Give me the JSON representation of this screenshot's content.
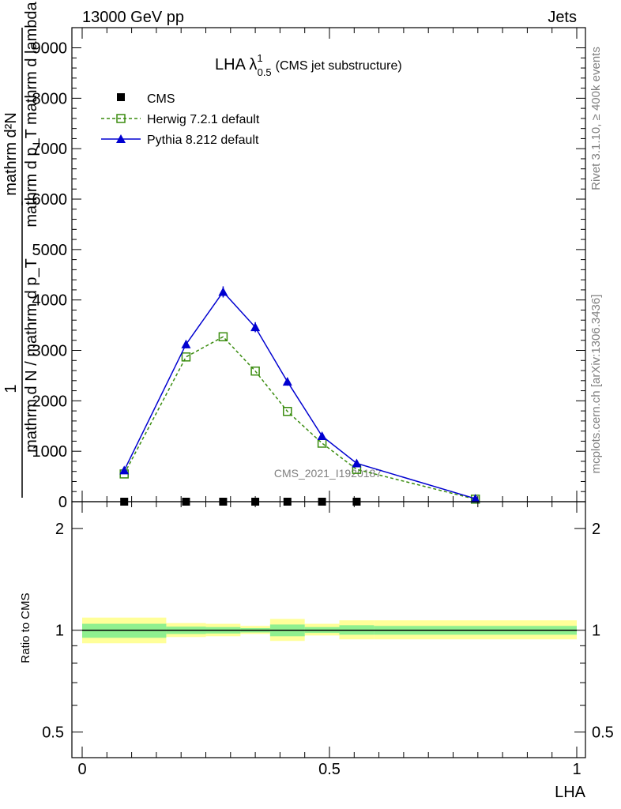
{
  "header": {
    "left": "13000 GeV pp",
    "right": "Jets"
  },
  "side": {
    "rivet": "Rivet 3.1.10, ≥ 400k events",
    "mcplots": "mcplots.cern.ch [arXiv:1306.3436]"
  },
  "ylabel": {
    "line1_num": "mathrm d²N",
    "line1_den": "mathrm d p_T mathrm d lambda",
    "line2_num": "1",
    "line2_den": "mathrm d N / mathrm d p_T"
  },
  "watermark": "CMS_2021_I1920187",
  "chart_data": {
    "type": "line",
    "title_main": "LHA λ",
    "title_sup": "1",
    "title_sub": "0.5",
    "title_suffix": "(CMS jet substructure)",
    "xlabel": "LHA",
    "xlim": [
      0,
      1
    ],
    "ylim": [
      0,
      9400
    ],
    "yticks": [
      0,
      1000,
      2000,
      3000,
      4000,
      5000,
      6000,
      7000,
      8000,
      9000
    ],
    "ytick_labels": [
      "0",
      "1000",
      "2000",
      "3000",
      "4000",
      "5000",
      "6000",
      "7000",
      "8000",
      "9000"
    ],
    "xticks": [
      0,
      0.5,
      1
    ],
    "xtick_labels": [
      "0",
      "0.5",
      "1"
    ],
    "series": [
      {
        "name": "CMS",
        "color": "#000000",
        "marker": "square",
        "x": [
          0.085,
          0.21,
          0.285,
          0.35,
          0.415,
          0.485,
          0.555
        ],
        "y": [
          0,
          0,
          0,
          0,
          0,
          0,
          0
        ]
      },
      {
        "name": "Herwig 7.2.1 default",
        "color": "#3a8c0f",
        "marker": "open-square",
        "dashed": true,
        "x": [
          0.085,
          0.21,
          0.285,
          0.35,
          0.415,
          0.485,
          0.555,
          0.795
        ],
        "y": [
          550,
          2870,
          3270,
          2590,
          1790,
          1160,
          640,
          50
        ]
      },
      {
        "name": "Pythia 8.212 default",
        "color": "#0000d0",
        "marker": "triangle",
        "x": [
          0.085,
          0.21,
          0.285,
          0.35,
          0.415,
          0.485,
          0.555,
          0.795
        ],
        "y": [
          620,
          3120,
          4160,
          3460,
          2380,
          1300,
          760,
          60
        ],
        "err": [
          40,
          80,
          110,
          100,
          80,
          60,
          40,
          15
        ]
      }
    ],
    "ratio": {
      "ylabel": "Ratio to CMS",
      "yticks": [
        0.5,
        1,
        2
      ],
      "ytick_labels": [
        "0.5",
        "1",
        "2"
      ],
      "bands": [
        {
          "x0": 0.0,
          "x1": 0.17,
          "y_lo": 0.915,
          "y_hi": 1.09,
          "g_lo": 0.95,
          "g_hi": 1.045
        },
        {
          "x0": 0.17,
          "x1": 0.25,
          "y_lo": 0.955,
          "y_hi": 1.05,
          "g_lo": 0.975,
          "g_hi": 1.025
        },
        {
          "x0": 0.25,
          "x1": 0.32,
          "y_lo": 0.96,
          "y_hi": 1.045,
          "g_lo": 0.978,
          "g_hi": 1.022
        },
        {
          "x0": 0.32,
          "x1": 0.38,
          "y_lo": 0.975,
          "y_hi": 1.03,
          "g_lo": 0.985,
          "g_hi": 1.015
        },
        {
          "x0": 0.38,
          "x1": 0.45,
          "y_lo": 0.93,
          "y_hi": 1.08,
          "g_lo": 0.96,
          "g_hi": 1.04
        },
        {
          "x0": 0.45,
          "x1": 0.52,
          "y_lo": 0.965,
          "y_hi": 1.045,
          "g_lo": 0.982,
          "g_hi": 1.022
        },
        {
          "x0": 0.52,
          "x1": 0.59,
          "y_lo": 0.94,
          "y_hi": 1.07,
          "g_lo": 0.97,
          "g_hi": 1.035
        },
        {
          "x0": 0.59,
          "x1": 1.0,
          "y_lo": 0.94,
          "y_hi": 1.07,
          "g_lo": 0.97,
          "g_hi": 1.03
        }
      ]
    }
  }
}
